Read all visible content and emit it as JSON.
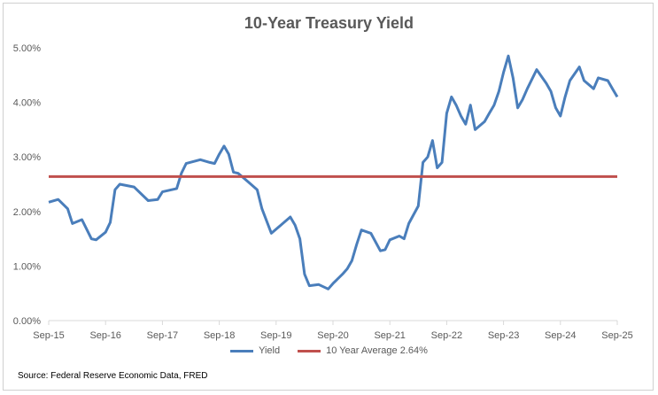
{
  "chart_data": {
    "type": "line",
    "title": "10-Year Treasury Yield",
    "xlabel": "",
    "ylabel": "",
    "x_tick_labels": [
      "Sep-15",
      "Sep-16",
      "Sep-17",
      "Sep-18",
      "Sep-19",
      "Sep-20",
      "Sep-21",
      "Sep-22",
      "Sep-23",
      "Sep-24",
      "Sep-25"
    ],
    "y_tick_labels": [
      "0.00%",
      "1.00%",
      "2.00%",
      "3.00%",
      "4.00%",
      "5.00%"
    ],
    "ylim": [
      0,
      5
    ],
    "xlim": [
      "2015-09",
      "2025-09"
    ],
    "grid": false,
    "legend_position": "bottom",
    "series": [
      {
        "name": "Yield",
        "color": "#4a7ebb",
        "points": [
          [
            "2015-09",
            2.17
          ],
          [
            "2015-11",
            2.22
          ],
          [
            "2016-01",
            2.05
          ],
          [
            "2016-02",
            1.78
          ],
          [
            "2016-04",
            1.85
          ],
          [
            "2016-06",
            1.5
          ],
          [
            "2016-07",
            1.48
          ],
          [
            "2016-09",
            1.62
          ],
          [
            "2016-10",
            1.8
          ],
          [
            "2016-11",
            2.4
          ],
          [
            "2016-12",
            2.5
          ],
          [
            "2017-03",
            2.45
          ],
          [
            "2017-06",
            2.2
          ],
          [
            "2017-08",
            2.22
          ],
          [
            "2017-09",
            2.36
          ],
          [
            "2017-12",
            2.42
          ],
          [
            "2018-01",
            2.7
          ],
          [
            "2018-02",
            2.88
          ],
          [
            "2018-05",
            2.95
          ],
          [
            "2018-07",
            2.9
          ],
          [
            "2018-08",
            2.88
          ],
          [
            "2018-09",
            3.05
          ],
          [
            "2018-10",
            3.2
          ],
          [
            "2018-11",
            3.05
          ],
          [
            "2018-12",
            2.72
          ],
          [
            "2019-01",
            2.7
          ],
          [
            "2019-03",
            2.55
          ],
          [
            "2019-05",
            2.4
          ],
          [
            "2019-06",
            2.05
          ],
          [
            "2019-08",
            1.6
          ],
          [
            "2019-10",
            1.75
          ],
          [
            "2019-12",
            1.9
          ],
          [
            "2020-01",
            1.75
          ],
          [
            "2020-02",
            1.5
          ],
          [
            "2020-03",
            0.85
          ],
          [
            "2020-04",
            0.64
          ],
          [
            "2020-06",
            0.66
          ],
          [
            "2020-08",
            0.58
          ],
          [
            "2020-09",
            0.68
          ],
          [
            "2020-11",
            0.85
          ],
          [
            "2020-12",
            0.95
          ],
          [
            "2021-01",
            1.1
          ],
          [
            "2021-02",
            1.4
          ],
          [
            "2021-03",
            1.66
          ],
          [
            "2021-05",
            1.6
          ],
          [
            "2021-07",
            1.28
          ],
          [
            "2021-08",
            1.3
          ],
          [
            "2021-09",
            1.48
          ],
          [
            "2021-11",
            1.55
          ],
          [
            "2021-12",
            1.5
          ],
          [
            "2022-01",
            1.78
          ],
          [
            "2022-03",
            2.1
          ],
          [
            "2022-04",
            2.9
          ],
          [
            "2022-05",
            3.0
          ],
          [
            "2022-06",
            3.3
          ],
          [
            "2022-07",
            2.8
          ],
          [
            "2022-08",
            2.9
          ],
          [
            "2022-09",
            3.8
          ],
          [
            "2022-10",
            4.1
          ],
          [
            "2022-11",
            3.95
          ],
          [
            "2022-12",
            3.75
          ],
          [
            "2023-01",
            3.6
          ],
          [
            "2023-02",
            3.95
          ],
          [
            "2023-03",
            3.5
          ],
          [
            "2023-05",
            3.65
          ],
          [
            "2023-06",
            3.8
          ],
          [
            "2023-07",
            3.95
          ],
          [
            "2023-08",
            4.2
          ],
          [
            "2023-09",
            4.55
          ],
          [
            "2023-10",
            4.85
          ],
          [
            "2023-11",
            4.45
          ],
          [
            "2023-12",
            3.9
          ],
          [
            "2024-01",
            4.05
          ],
          [
            "2024-02",
            4.25
          ],
          [
            "2024-04",
            4.6
          ],
          [
            "2024-06",
            4.35
          ],
          [
            "2024-07",
            4.2
          ],
          [
            "2024-08",
            3.9
          ],
          [
            "2024-09",
            3.75
          ],
          [
            "2024-10",
            4.1
          ],
          [
            "2024-11",
            4.4
          ],
          [
            "2025-01",
            4.65
          ],
          [
            "2025-02",
            4.4
          ],
          [
            "2025-04",
            4.25
          ],
          [
            "2025-05",
            4.45
          ],
          [
            "2025-07",
            4.4
          ],
          [
            "2025-08",
            4.25
          ],
          [
            "2025-09",
            4.1
          ]
        ]
      },
      {
        "name": "10 Year Average 2.64%",
        "color": "#c0504d",
        "points": [
          [
            "2015-09",
            2.64
          ],
          [
            "2025-09",
            2.64
          ]
        ]
      }
    ]
  },
  "footer": {
    "source": "Source: Federal Reserve Economic Data,  FRED"
  }
}
